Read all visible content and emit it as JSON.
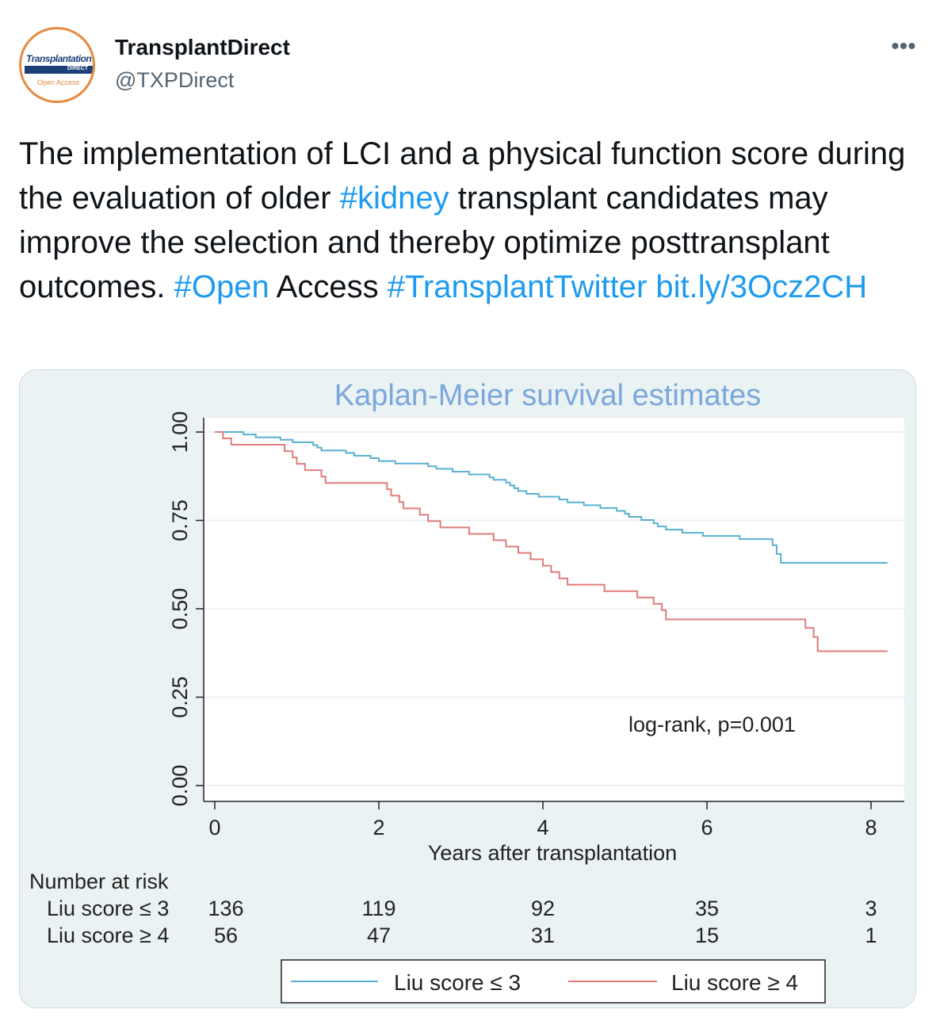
{
  "author": {
    "display_name": "TransplantDirect",
    "handle": "@TXPDirect",
    "avatar_logo": {
      "line1": "Transplantation",
      "line2": "DIRECT",
      "line3": "Open Access"
    }
  },
  "more_icon": "more-options-icon",
  "tweet": {
    "seg1": "The implementation of LCI and a physical function score during the evaluation of older ",
    "tag_kidney": "#kidney",
    "seg2": " transplant candidates may improve the selection and thereby optimize posttransplant outcomes. ",
    "tag_open": "#Open",
    "seg3": " Access ",
    "tag_twitter": "#TransplantTwitter",
    "seg4": " ",
    "link": "bit.ly/3Ocz2CH"
  },
  "colors": {
    "link": "#1d9bf0",
    "series_low": "#5ab0d0",
    "series_high": "#e07c7c",
    "title": "#7ba7dc",
    "plot_bg": "#ffffff",
    "outer_bg": "#eaf2f3"
  },
  "chart_data": {
    "type": "line",
    "title": "Kaplan-Meier survival estimates",
    "xlabel": "Years after transplantation",
    "ylabel": "",
    "xlim": [
      0,
      8.3
    ],
    "ylim": [
      0,
      1.05
    ],
    "x_ticks": [
      0,
      2,
      4,
      6,
      8
    ],
    "y_ticks": [
      0.0,
      0.25,
      0.5,
      0.75,
      1.0
    ],
    "y_tick_labels": [
      "0.00",
      "0.25",
      "0.50",
      "0.75",
      "1.00"
    ],
    "annotation": "log-rank, p=0.001",
    "grid": true,
    "legend_position": "bottom",
    "series": [
      {
        "name": "Liu score ≤ 3",
        "step": true,
        "points": [
          [
            0,
            1.0
          ],
          [
            0.35,
            0.993
          ],
          [
            0.5,
            0.985
          ],
          [
            0.8,
            0.978
          ],
          [
            0.95,
            0.971
          ],
          [
            1.2,
            0.963
          ],
          [
            1.25,
            0.956
          ],
          [
            1.3,
            0.948
          ],
          [
            1.6,
            0.941
          ],
          [
            1.7,
            0.933
          ],
          [
            1.9,
            0.926
          ],
          [
            2.0,
            0.918
          ],
          [
            2.2,
            0.911
          ],
          [
            2.6,
            0.903
          ],
          [
            2.7,
            0.896
          ],
          [
            2.9,
            0.888
          ],
          [
            3.1,
            0.88
          ],
          [
            3.35,
            0.872
          ],
          [
            3.4,
            0.865
          ],
          [
            3.55,
            0.857
          ],
          [
            3.6,
            0.849
          ],
          [
            3.65,
            0.841
          ],
          [
            3.7,
            0.833
          ],
          [
            3.8,
            0.825
          ],
          [
            3.95,
            0.817
          ],
          [
            4.2,
            0.809
          ],
          [
            4.3,
            0.801
          ],
          [
            4.5,
            0.793
          ],
          [
            4.7,
            0.785
          ],
          [
            4.9,
            0.777
          ],
          [
            5.0,
            0.769
          ],
          [
            5.05,
            0.76
          ],
          [
            5.2,
            0.751
          ],
          [
            5.35,
            0.742
          ],
          [
            5.4,
            0.733
          ],
          [
            5.5,
            0.724
          ],
          [
            5.7,
            0.715
          ],
          [
            5.95,
            0.706
          ],
          [
            6.4,
            0.697
          ],
          [
            6.8,
            0.68
          ],
          [
            6.85,
            0.655
          ],
          [
            6.9,
            0.63
          ],
          [
            8.2,
            0.63
          ]
        ]
      },
      {
        "name": "Liu score ≥ 4",
        "step": true,
        "points": [
          [
            0,
            1.0
          ],
          [
            0.1,
            0.982
          ],
          [
            0.2,
            0.964
          ],
          [
            0.85,
            0.946
          ],
          [
            0.95,
            0.928
          ],
          [
            1.0,
            0.91
          ],
          [
            1.1,
            0.892
          ],
          [
            1.3,
            0.874
          ],
          [
            1.35,
            0.856
          ],
          [
            2.1,
            0.838
          ],
          [
            2.15,
            0.82
          ],
          [
            2.25,
            0.802
          ],
          [
            2.3,
            0.784
          ],
          [
            2.5,
            0.766
          ],
          [
            2.6,
            0.748
          ],
          [
            2.75,
            0.73
          ],
          [
            3.1,
            0.712
          ],
          [
            3.4,
            0.694
          ],
          [
            3.55,
            0.676
          ],
          [
            3.7,
            0.658
          ],
          [
            3.85,
            0.64
          ],
          [
            4.0,
            0.622
          ],
          [
            4.1,
            0.604
          ],
          [
            4.2,
            0.586
          ],
          [
            4.3,
            0.568
          ],
          [
            4.75,
            0.55
          ],
          [
            5.15,
            0.532
          ],
          [
            5.35,
            0.514
          ],
          [
            5.45,
            0.496
          ],
          [
            5.5,
            0.47
          ],
          [
            7.2,
            0.446
          ],
          [
            7.3,
            0.42
          ],
          [
            7.35,
            0.38
          ],
          [
            8.2,
            0.38
          ]
        ]
      }
    ],
    "risk_table": {
      "heading": "Number at risk",
      "times": [
        0,
        2,
        4,
        6,
        8
      ],
      "rows": [
        {
          "label": "Liu score ≤ 3",
          "values": [
            "136",
            "119",
            "92",
            "35",
            "3"
          ]
        },
        {
          "label": "Liu score ≥ 4",
          "values": [
            "56",
            "47",
            "31",
            "15",
            "1"
          ]
        }
      ]
    }
  }
}
